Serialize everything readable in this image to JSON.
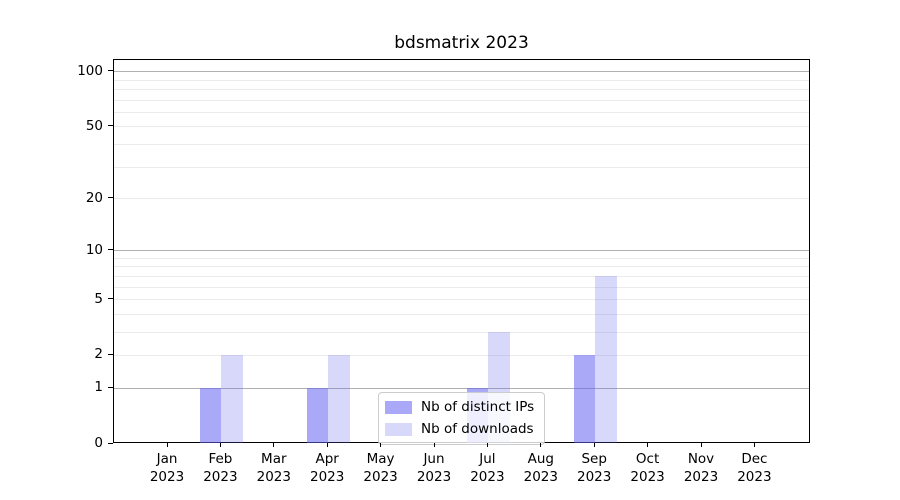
{
  "title": "bdsmatrix 2023",
  "colors": {
    "bar_base": "#6262f0",
    "series_fill": [
      "rgba(98,98,240,0.55)",
      "rgba(98,98,240,0.25)"
    ],
    "grid_major": "#b0b0b0",
    "grid_minor": "#ebebeb",
    "spine": "#000000",
    "legend_border": "#cccccc"
  },
  "legend": {
    "position": "lower center",
    "items": [
      {
        "label": "Nb of distinct IPs"
      },
      {
        "label": "Nb of downloads"
      }
    ]
  },
  "chart_data": {
    "type": "bar",
    "title": "bdsmatrix 2023",
    "categories": [
      "Jan 2023",
      "Feb 2023",
      "Mar 2023",
      "Apr 2023",
      "May 2023",
      "Jun 2023",
      "Jul 2023",
      "Aug 2023",
      "Sep 2023",
      "Oct 2023",
      "Nov 2023",
      "Dec 2023"
    ],
    "series": [
      {
        "name": "Nb of distinct IPs",
        "values": [
          0,
          1,
          0,
          1,
          0,
          0,
          1,
          0,
          2,
          0,
          0,
          0
        ]
      },
      {
        "name": "Nb of downloads",
        "values": [
          0,
          2,
          0,
          2,
          0,
          0,
          3,
          0,
          7,
          0,
          0,
          0
        ]
      }
    ],
    "xlabel": "",
    "ylabel": "",
    "yscale": "log1p",
    "ylim": [
      0,
      115
    ],
    "ytick_values": [
      0,
      1,
      2,
      5,
      10,
      20,
      50,
      100
    ],
    "ytick_labels": [
      "0",
      "1",
      "2",
      "5",
      "10",
      "20",
      "50",
      "100"
    ],
    "grid_minor_values": [
      2,
      3,
      4,
      5,
      6,
      7,
      8,
      9,
      20,
      30,
      40,
      50,
      60,
      70,
      80,
      90
    ],
    "grid_major_values": [
      1,
      10,
      100
    ],
    "grid": "horizontal",
    "legend_position": "lower center"
  }
}
